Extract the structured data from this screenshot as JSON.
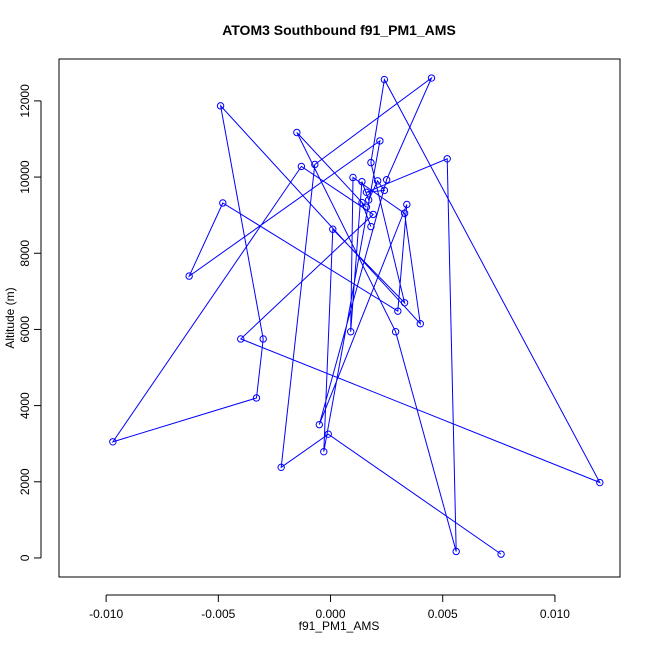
{
  "chart_data": {
    "type": "scatter",
    "title": "ATOM3 Southbound f91_PM1_AMS",
    "xlabel": "f91_PM1_AMS",
    "ylabel": "Altitude (m)",
    "xlim": [
      -0.0121,
      0.0129
    ],
    "ylim": [
      -500,
      13100
    ],
    "x_ticks": [
      -0.01,
      -0.005,
      0.0,
      0.005,
      0.01
    ],
    "x_tick_labels": [
      "-0.010",
      "-0.005",
      "0.000",
      "0.005",
      "0.010"
    ],
    "y_ticks": [
      0,
      2000,
      4000,
      6000,
      8000,
      10000,
      12000
    ],
    "y_tick_labels": [
      "0",
      "2000",
      "4000",
      "6000",
      "8000",
      "10000",
      "12000"
    ],
    "grid": false,
    "legend": null,
    "connected": true,
    "marker": "open-circle",
    "color": "#0000ff",
    "x": [
      0.0076,
      -0.0001,
      -0.0022,
      -0.0007,
      0.0045,
      0.0025,
      -0.0005,
      0.0034,
      0.003,
      -0.0048,
      -0.0063,
      0.0022,
      -0.0003,
      0.0001,
      0.0033,
      0.0018,
      0.0024,
      0.012,
      -0.004,
      0.0019,
      -0.0013,
      -0.0097,
      -0.0033,
      -0.003,
      -0.0049,
      0.004,
      0.0033,
      0.001,
      0.0009,
      0.0014,
      0.0017,
      0.0021,
      0.0024,
      0.0016,
      0.0052,
      0.0056,
      0.0029,
      -0.0015,
      0.0016,
      0.0014,
      0.0018
    ],
    "y": [
      100,
      3250,
      2380,
      10330,
      12600,
      9930,
      3500,
      9280,
      6480,
      9320,
      7400,
      10950,
      2790,
      8630,
      6700,
      10380,
      12560,
      1980,
      5750,
      9020,
      10280,
      3050,
      4200,
      5750,
      11870,
      6150,
      9050,
      9990,
      5940,
      9880,
      9400,
      9900,
      9650,
      9600,
      10480,
      170,
      5940,
      11170,
      9210,
      9330,
      8700
    ]
  }
}
